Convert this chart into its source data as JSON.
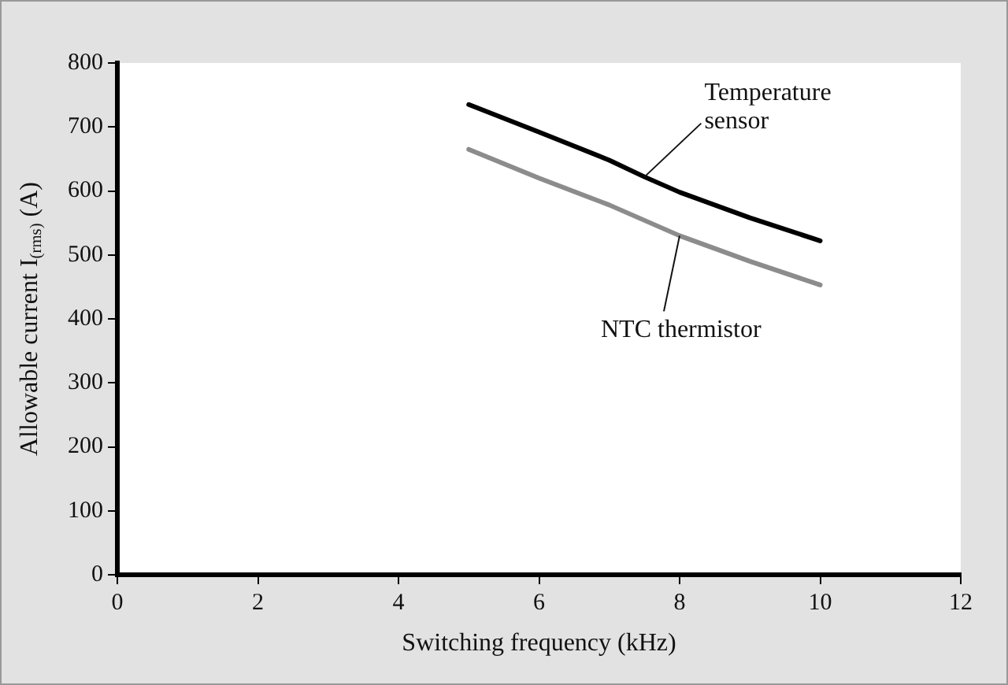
{
  "chart_data": {
    "type": "line",
    "xlabel": "Switching frequency (kHz)",
    "ylabel": "Allowable current I$_{(rms)}$ (A)",
    "series": [
      {
        "name": "Temperature sensor",
        "color": "#000000",
        "x": [
          5,
          6,
          7,
          7.5,
          8,
          9,
          10
        ],
        "values": [
          735,
          692,
          648,
          622,
          598,
          558,
          522
        ]
      },
      {
        "name": "NTC thermistor",
        "color": "#8c8c8c",
        "x": [
          5,
          6,
          7,
          8,
          9,
          10
        ],
        "values": [
          665,
          620,
          578,
          530,
          490,
          453
        ]
      }
    ],
    "xlim": [
      0,
      12
    ],
    "xticks": [
      0,
      2,
      4,
      6,
      8,
      10,
      12
    ],
    "ylim": [
      0,
      800
    ],
    "yticks": [
      0,
      100,
      200,
      300,
      400,
      500,
      600,
      700,
      800
    ],
    "grid": false,
    "legend": false,
    "marker": "none",
    "line_style": "solid"
  }
}
